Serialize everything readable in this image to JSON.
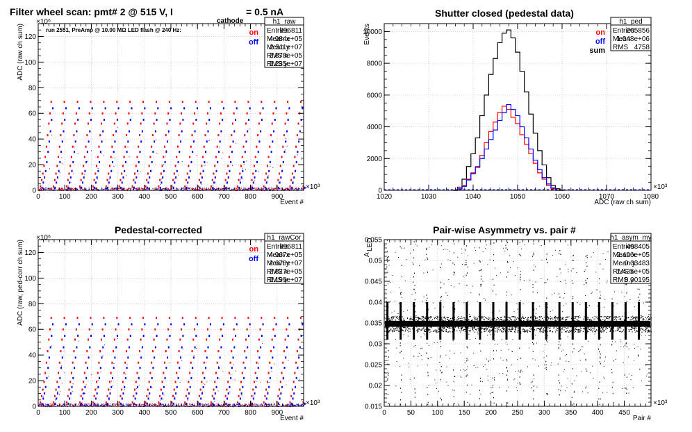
{
  "colors": {
    "on": "#ff0000",
    "off": "#0000ff",
    "sum": "#000000",
    "grid": "#c8c8c8",
    "frame": "#000000"
  },
  "panels": [
    {
      "id": "raw",
      "title": "Filter wheel scan: pmt#   2 @   515 V, I",
      "title_sub": "cathode",
      "title_tail": "= 0.5 nA",
      "stat_name": "h1_raw",
      "stats": [
        [
          "Entries",
          "996811"
        ],
        [
          "Mean x",
          "4.984e+05"
        ],
        [
          "Mean y",
          "2.511e+07"
        ],
        [
          "RMS x",
          "2.878e+05"
        ],
        [
          "RMS y",
          "2.235e+07"
        ]
      ],
      "legend": [
        "on",
        "off"
      ],
      "note": "run 2551, PreAmp @ 10.00 MΩ LED flash @  240 Hz:",
      "xlabel": "Event #",
      "ylabel": "ADC (raw ch sum)",
      "xexp": "×10³",
      "yexp": "×10⁶",
      "xticks": [
        "0",
        "100",
        "200",
        "300",
        "400",
        "500",
        "600",
        "700",
        "800",
        "900"
      ],
      "yticks": [
        "0",
        "20",
        "40",
        "60",
        "80",
        "100",
        "120"
      ]
    },
    {
      "id": "ped",
      "title": "Shutter closed (pedestal data)",
      "stat_name": "h1_ped",
      "stats": [
        [
          "Entries",
          "205856"
        ],
        [
          "Mean",
          "1.048e+06"
        ],
        [
          "RMS",
          "4758"
        ]
      ],
      "legend": [
        "on",
        "off",
        "sum"
      ],
      "xlabel": "ADC (raw ch sum)",
      "ylabel": "Events",
      "xexp": "×10³",
      "xticks": [
        "1020",
        "1030",
        "1040",
        "1050",
        "1060",
        "1070",
        "1080"
      ],
      "yticks": [
        "0",
        "2000",
        "4000",
        "6000",
        "8000",
        "10000"
      ]
    },
    {
      "id": "rawCor",
      "title": "Pedestal-corrected",
      "stat_name": "h1_rawCor",
      "stats": [
        [
          "Entries",
          "996811"
        ],
        [
          "Mean x",
          "4.967e+05"
        ],
        [
          "Mean y",
          "2.678e+07"
        ],
        [
          "RMS x",
          "2.827e+05"
        ],
        [
          "RMS y",
          "2.199e+07"
        ]
      ],
      "legend": [
        "on",
        "off"
      ],
      "xlabel": "Event #",
      "ylabel": "ADC (raw, ped-corr ch sum)",
      "xexp": "×10³",
      "yexp": "×10⁶",
      "xticks": [
        "0",
        "100",
        "200",
        "300",
        "400",
        "500",
        "600",
        "700",
        "800",
        "900"
      ],
      "yticks": [
        "0",
        "20",
        "40",
        "60",
        "80",
        "100",
        "120"
      ]
    },
    {
      "id": "asym",
      "title": "Pair-wise Asymmetry vs. pair #",
      "stat_name": "h1_asym_my",
      "stats": [
        [
          "Entries",
          "498405"
        ],
        [
          "Mean x",
          "2.496e+05"
        ],
        [
          "Mean y",
          "0.03483"
        ],
        [
          "RMS x",
          "1.435e+05"
        ],
        [
          "RMS y",
          "0.00195"
        ]
      ],
      "xlabel": "Pair #",
      "ylabel": "A",
      "ylabel_sub": "LED",
      "xexp": "×10³",
      "xticks": [
        "0",
        "50",
        "100",
        "150",
        "200",
        "250",
        "300",
        "350",
        "400",
        "450"
      ],
      "yticks": [
        "0.015",
        "0.02",
        "0.025",
        "0.03",
        "0.035",
        "0.04",
        "0.045",
        "0.05",
        "0.055"
      ]
    }
  ],
  "chart_data": [
    {
      "type": "scatter",
      "panel": "raw",
      "x_unit": "event # (×10³)",
      "y_unit": "ADC raw ch sum (×10⁶)",
      "xlim": [
        0,
        1000
      ],
      "ylim": [
        0,
        130
      ],
      "grid": true,
      "period_events_k": 49.5,
      "first_step_events_k": 8,
      "levels_on": [
        3,
        8,
        13,
        19,
        26,
        34,
        43,
        52,
        60,
        69
      ],
      "levels_off": [
        2,
        6,
        10,
        15,
        22,
        30,
        38,
        46,
        55,
        64
      ],
      "series": [
        {
          "name": "on"
        },
        {
          "name": "off"
        }
      ]
    },
    {
      "type": "line",
      "panel": "ped",
      "x_unit": "ADC raw ch sum (×10³)",
      "xlim": [
        1020,
        1080
      ],
      "ylim": [
        0,
        10500
      ],
      "grid": true,
      "x": [
        1036,
        1037,
        1038,
        1039,
        1040,
        1041,
        1042,
        1043,
        1044,
        1045,
        1046,
        1047,
        1048,
        1049,
        1050,
        1051,
        1052,
        1053,
        1054,
        1055,
        1056,
        1057,
        1058,
        1059,
        1060
      ],
      "series": [
        {
          "name": "sum",
          "values": [
            0,
            200,
            700,
            1500,
            2300,
            3300,
            4700,
            6000,
            7300,
            8300,
            9300,
            9900,
            10100,
            9600,
            8700,
            7500,
            6200,
            4800,
            3600,
            2500,
            1600,
            800,
            300,
            100,
            0
          ]
        },
        {
          "name": "on",
          "values": [
            0,
            100,
            300,
            700,
            1100,
            1500,
            2200,
            3000,
            3700,
            4300,
            4900,
            5300,
            5100,
            4600,
            4200,
            3500,
            2900,
            2300,
            1700,
            1100,
            700,
            300,
            100,
            0,
            0
          ]
        },
        {
          "name": "off",
          "values": [
            0,
            80,
            250,
            650,
            1050,
            1450,
            2000,
            2600,
            3200,
            3800,
            4400,
            4900,
            5400,
            5100,
            4700,
            4000,
            3300,
            2600,
            1900,
            1300,
            800,
            400,
            150,
            0,
            0
          ]
        }
      ]
    },
    {
      "type": "scatter",
      "panel": "rawCor",
      "x_unit": "event # (×10³)",
      "y_unit": "ADC raw ped-corr ch sum (×10⁶)",
      "xlim": [
        0,
        1000
      ],
      "ylim": [
        0,
        130
      ],
      "grid": true,
      "period_events_k": 49.5,
      "first_step_events_k": 8,
      "levels_on": [
        3,
        8,
        13,
        19,
        26,
        34,
        43,
        52,
        60,
        69
      ],
      "levels_off": [
        2,
        6,
        10,
        15,
        22,
        30,
        38,
        46,
        55,
        64
      ],
      "series": [
        {
          "name": "on"
        },
        {
          "name": "off"
        }
      ]
    },
    {
      "type": "scatter",
      "panel": "asym",
      "x_unit": "pair # (×10³)",
      "xlim": [
        0,
        500
      ],
      "ylim": [
        0.015,
        0.055
      ],
      "grid": true,
      "band_center": 0.0348,
      "band_halfwidth": 0.0012,
      "spike_period_k": 24.8,
      "first_spike_k": 6,
      "spike_low": 0.031,
      "spike_high": 0.04
    }
  ]
}
